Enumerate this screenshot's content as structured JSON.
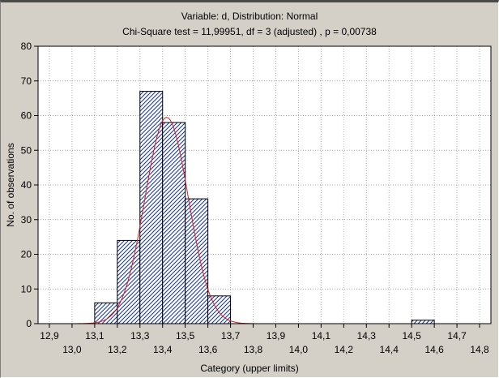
{
  "chart_data": {
    "type": "bar",
    "title": "Variable: d, Distribution: Normal",
    "subtitle": "Chi-Square test = 11,99951, df = 3 (adjusted) , p = 0,00738",
    "xlabel": "Category (upper limits)",
    "ylabel": "No. of observations",
    "xlim": [
      12.85,
      14.85
    ],
    "ylim": [
      0,
      80
    ],
    "y_ticks": [
      0,
      10,
      20,
      30,
      40,
      50,
      60,
      70,
      80
    ],
    "x_ticks_upper": [
      "12,9",
      "13,1",
      "13,3",
      "13,5",
      "13,7",
      "13,9",
      "14,1",
      "14,3",
      "14,5",
      "14,7"
    ],
    "x_ticks_lower": [
      "13,0",
      "13,2",
      "13,4",
      "13,6",
      "13,8",
      "14,0",
      "14,2",
      "14,4",
      "14,6",
      "14,8"
    ],
    "x_ticks_upper_values": [
      12.9,
      13.1,
      13.3,
      13.5,
      13.7,
      13.9,
      14.1,
      14.3,
      14.5,
      14.7
    ],
    "x_ticks_lower_values": [
      13.0,
      13.2,
      13.4,
      13.6,
      13.8,
      14.0,
      14.2,
      14.4,
      14.6,
      14.8
    ],
    "bin_width": 0.1,
    "bins": [
      {
        "upper": 13.2,
        "count": 6
      },
      {
        "upper": 13.3,
        "count": 24
      },
      {
        "upper": 13.4,
        "count": 67
      },
      {
        "upper": 13.5,
        "count": 58
      },
      {
        "upper": 13.6,
        "count": 36
      },
      {
        "upper": 13.7,
        "count": 8
      },
      {
        "upper": 14.6,
        "count": 1
      }
    ],
    "normal_curve": {
      "mean": 13.418,
      "sd": 0.0962,
      "x_range": [
        12.95,
        13.9
      ],
      "peak": 59.5
    },
    "grid": true,
    "colors": {
      "bar_fill": "#ffffff",
      "bar_hatch": "#1f3a9a",
      "bar_outline": "#000000",
      "curve": "#d42020",
      "grid": "#a8a8a8",
      "background": "#d4d0c8"
    }
  }
}
